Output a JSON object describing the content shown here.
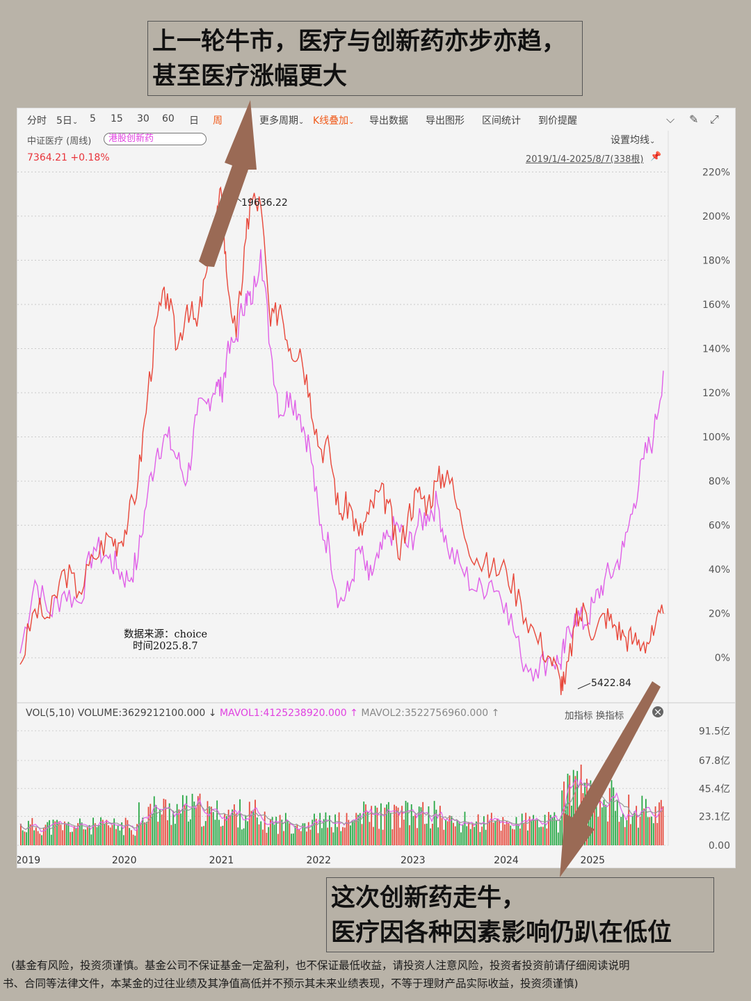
{
  "annotations": {
    "top": [
      "上一轮牛市，医疗与创新药亦步亦趋，",
      "甚至医疗涨幅更大"
    ],
    "bottom": [
      "这次创新药走牛，",
      "医疗因各种因素影响仍趴在低位"
    ]
  },
  "toolbar": {
    "items": [
      "分时",
      "5日",
      "5",
      "15",
      "30",
      "60",
      "日",
      "周",
      "更多周期",
      "K线叠加",
      "导出数据",
      "导出图形",
      "区间统计",
      "到价提醒"
    ],
    "active": "周",
    "dropdown_marker": "⌄"
  },
  "info": {
    "title": "中证医疗 (周线)",
    "overlay": "港股创新药",
    "price": "7364.21 +0.18%",
    "ma_setting": "设置均线",
    "range": "2019/1/4-2025/8/7(338根)"
  },
  "source_note": [
    "数据来源：choice",
    "时间2025.8.7"
  ],
  "volume_header": {
    "vol": "VOL(5,10)",
    "volume": "VOLUME:3629212100.000",
    "mavol1": "MAVOL1:4125238920.000",
    "mavol2": "MAVOL2:3522756960.000",
    "down_arrow": "↓",
    "up_arrow": "↑",
    "actions": "加指标 换指标"
  },
  "footer": [
    "(基金有风险，投资须谨慎。基金公司不保证基金一定盈利，也不保证最低收益，请投资人注意风险，投资者投资前请仔细阅读说明",
    "书、合同等法律文件，本某金的过往业绩及其净值高低并不预示其未来业绩表现，不等于理财产品实际收益，投资须谨慎)"
  ],
  "colors": {
    "medical": "#e8473a",
    "innovative": "#e060e8",
    "volume_up": "#e64a3d",
    "volume_down": "#28a745",
    "arrow": "#9a6a55",
    "mavol2": "#999999"
  },
  "chart_data": {
    "type": "line",
    "x_axis_labels": [
      "2019",
      "2020",
      "2021",
      "2022",
      "2023",
      "2024",
      "2025"
    ],
    "y_axis_labels": [
      "220%",
      "200%",
      "180%",
      "160%",
      "140%",
      "120%",
      "100%",
      "80%",
      "60%",
      "40%",
      "20%",
      "0%"
    ],
    "ylim": [
      -10,
      222
    ],
    "peak_label": "19636.22",
    "trough_label": "5422.84",
    "series": [
      {
        "name": "中证医疗",
        "x": [
          2019.0,
          2019.15,
          2019.3,
          2019.45,
          2019.6,
          2019.75,
          2019.9,
          2020.0,
          2020.1,
          2020.2,
          2020.3,
          2020.4,
          2020.5,
          2020.6,
          2020.7,
          2020.8,
          2020.9,
          2021.0,
          2021.05,
          2021.1,
          2021.2,
          2021.3,
          2021.35,
          2021.45,
          2021.55,
          2021.65,
          2021.75,
          2021.85,
          2021.95,
          2022.05,
          2022.15,
          2022.25,
          2022.35,
          2022.45,
          2022.55,
          2022.65,
          2022.75,
          2022.85,
          2022.95,
          2023.05,
          2023.15,
          2023.25,
          2023.35,
          2023.5,
          2023.65,
          2023.8,
          2023.95,
          2024.1,
          2024.25,
          2024.4,
          2024.5,
          2024.55,
          2024.65,
          2024.75,
          2024.85,
          2024.95,
          2025.05,
          2025.15,
          2025.25,
          2025.35,
          2025.45,
          2025.55
        ],
        "values": [
          -3,
          22,
          18,
          40,
          30,
          45,
          55,
          52,
          62,
          80,
          120,
          155,
          165,
          140,
          160,
          150,
          175,
          200,
          210,
          175,
          145,
          190,
          208,
          205,
          150,
          160,
          140,
          140,
          120,
          95,
          95,
          65,
          70,
          55,
          65,
          75,
          70,
          45,
          65,
          75,
          70,
          80,
          85,
          60,
          45,
          40,
          40,
          25,
          10,
          0,
          -10,
          -12,
          15,
          22,
          10,
          20,
          15,
          10,
          8,
          7,
          10,
          20
        ]
      },
      {
        "name": "港股创新药",
        "x": [
          2019.0,
          2019.15,
          2019.3,
          2019.45,
          2019.6,
          2019.75,
          2019.9,
          2020.0,
          2020.1,
          2020.2,
          2020.3,
          2020.4,
          2020.5,
          2020.6,
          2020.7,
          2020.8,
          2020.9,
          2021.0,
          2021.05,
          2021.1,
          2021.2,
          2021.3,
          2021.35,
          2021.45,
          2021.55,
          2021.65,
          2021.75,
          2021.85,
          2021.95,
          2022.05,
          2022.15,
          2022.25,
          2022.35,
          2022.45,
          2022.55,
          2022.65,
          2022.75,
          2022.85,
          2022.95,
          2023.05,
          2023.15,
          2023.25,
          2023.35,
          2023.5,
          2023.65,
          2023.8,
          2023.95,
          2024.1,
          2024.25,
          2024.4,
          2024.5,
          2024.55,
          2024.65,
          2024.75,
          2024.85,
          2024.95,
          2025.05,
          2025.15,
          2025.25,
          2025.35,
          2025.45,
          2025.55
        ],
        "values": [
          2,
          35,
          20,
          30,
          25,
          50,
          45,
          40,
          35,
          45,
          75,
          95,
          100,
          90,
          80,
          110,
          115,
          125,
          120,
          135,
          145,
          165,
          160,
          185,
          140,
          110,
          120,
          110,
          95,
          60,
          50,
          25,
          30,
          50,
          35,
          45,
          55,
          60,
          50,
          60,
          65,
          70,
          50,
          40,
          30,
          35,
          25,
          0,
          -5,
          0,
          -3,
          5,
          20,
          15,
          25,
          35,
          40,
          50,
          70,
          90,
          100,
          130
        ]
      }
    ]
  },
  "volume_data": {
    "axis_labels": [
      "91.5亿",
      "67.8亿",
      "45.4亿",
      "23.1亿",
      "0.00"
    ],
    "ylim": [
      0,
      100
    ]
  }
}
